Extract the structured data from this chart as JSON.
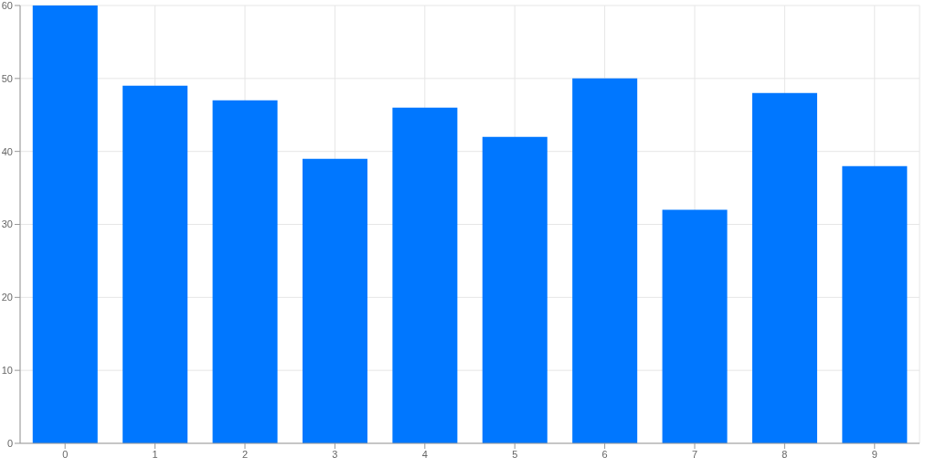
{
  "chart_data": {
    "type": "bar",
    "categories": [
      "0",
      "1",
      "2",
      "3",
      "4",
      "5",
      "6",
      "7",
      "8",
      "9"
    ],
    "values": [
      60,
      49,
      47,
      39,
      46,
      42,
      50,
      32,
      48,
      38
    ],
    "color": "#0077ff",
    "ylim": [
      0,
      60
    ],
    "yticks": [
      0,
      10,
      20,
      30,
      40,
      50,
      60
    ],
    "grid": true
  }
}
